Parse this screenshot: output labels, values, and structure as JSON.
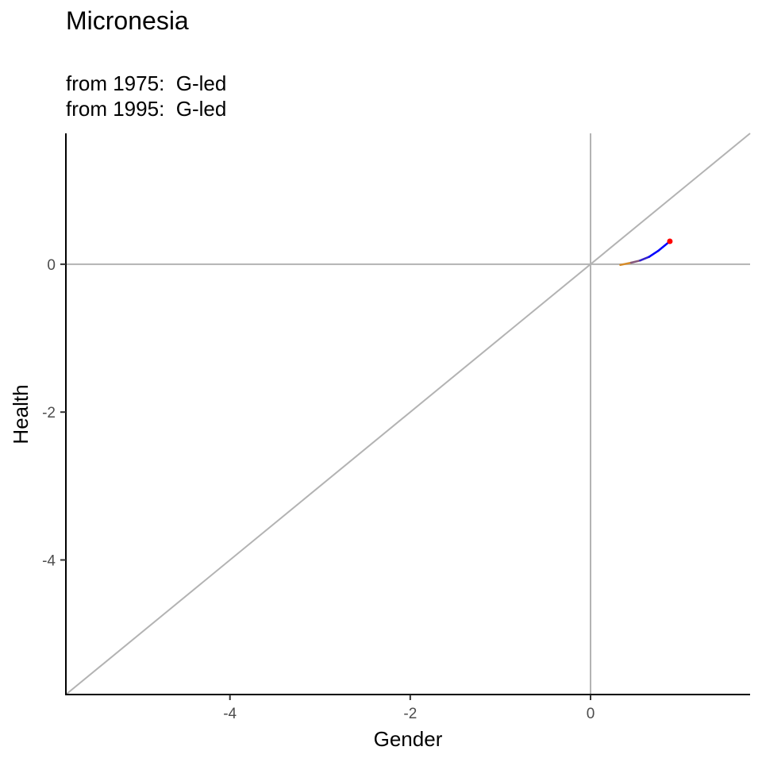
{
  "chart_data": {
    "type": "line",
    "title": "Micronesia",
    "subtitle_lines": [
      "from 1975:  G-led",
      "from 1995:  G-led"
    ],
    "xlabel": "Gender",
    "ylabel": "Health",
    "xlim": [
      -5.82,
      1.77
    ],
    "ylim": [
      -5.82,
      1.77
    ],
    "x_ticks": [
      -4,
      -2,
      0
    ],
    "y_ticks": [
      0,
      -2,
      -4
    ],
    "reference_lines": {
      "vline_x": 0,
      "hline_y": 0,
      "diagonal": "y = x"
    },
    "grid": false,
    "series": [
      {
        "color_start": "#ffa500",
        "color_end": "#0000ff",
        "x": [
          0.33,
          0.45,
          0.55,
          0.65,
          0.75,
          0.88
        ],
        "y": [
          -0.01,
          0.02,
          0.05,
          0.1,
          0.18,
          0.31
        ]
      }
    ],
    "end_point": {
      "x": 0.88,
      "y": 0.31,
      "color": "#ff0000"
    }
  }
}
